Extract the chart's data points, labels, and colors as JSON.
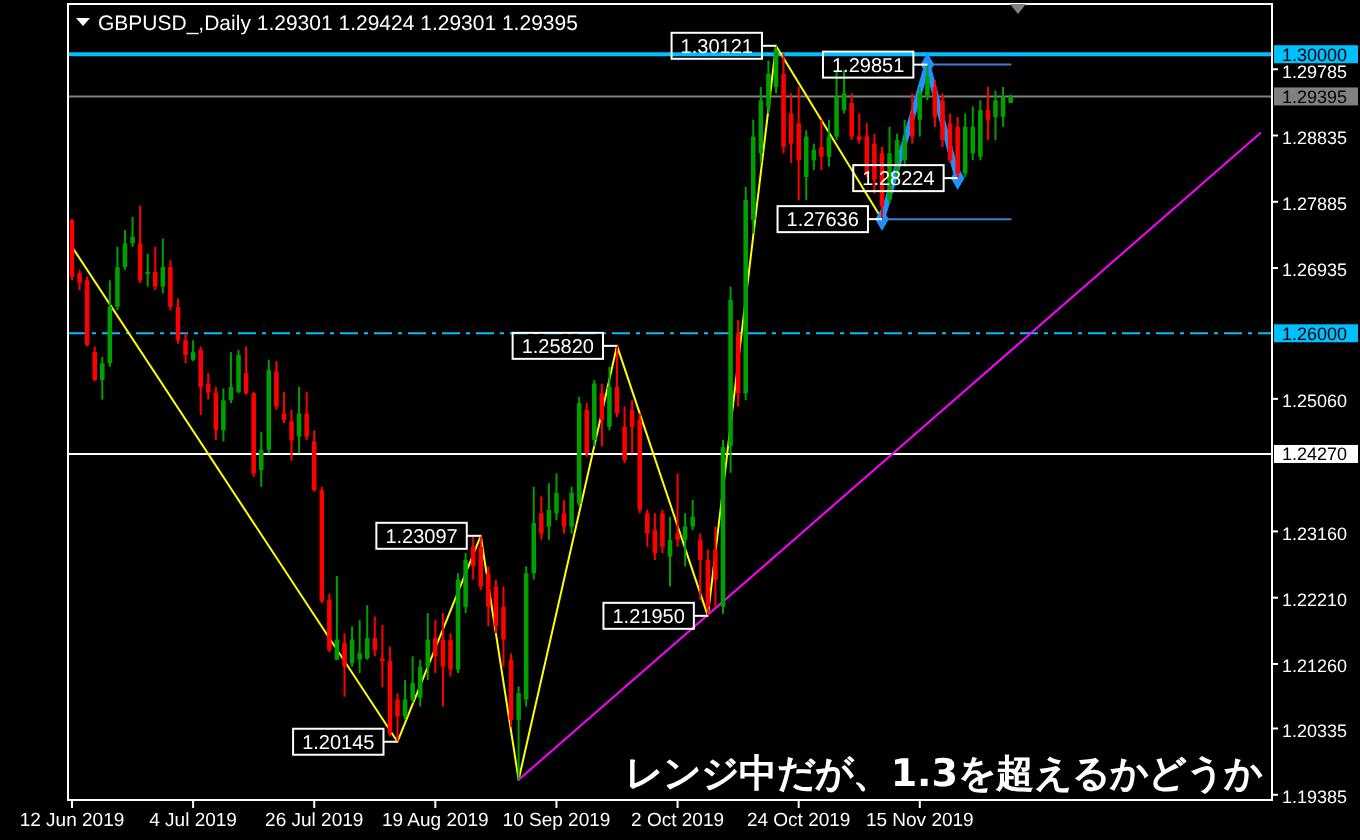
{
  "chart_data": {
    "type": "candlestick",
    "title": "GBPUSD_,Daily  1.29301 1.29424 1.29301 1.29395",
    "categories": [
      "12 Jun 2019",
      null,
      null,
      null,
      null,
      null,
      null,
      null,
      null,
      null,
      null,
      null,
      null,
      null,
      null,
      null,
      "4 Jul 2019",
      null,
      null,
      null,
      null,
      null,
      null,
      null,
      null,
      null,
      null,
      null,
      null,
      null,
      null,
      null,
      "26 Jul 2019",
      null,
      null,
      null,
      null,
      null,
      null,
      null,
      null,
      null,
      null,
      null,
      null,
      null,
      null,
      null,
      "19 Aug 2019",
      null,
      null,
      null,
      null,
      null,
      null,
      null,
      null,
      null,
      null,
      null,
      null,
      null,
      null,
      null,
      "10 Sep 2019",
      null,
      null,
      null,
      null,
      null,
      null,
      null,
      null,
      null,
      null,
      null,
      null,
      null,
      null,
      null,
      "2 Oct 2019",
      null,
      null,
      null,
      null,
      null,
      null,
      null,
      null,
      null,
      null,
      null,
      null,
      null,
      null,
      null,
      "24 Oct 2019",
      null,
      null,
      null,
      null,
      null,
      null,
      null,
      null,
      null,
      null,
      null,
      null,
      null,
      null,
      null,
      "15 Nov 2019",
      null,
      null,
      null,
      null,
      null,
      null,
      null,
      null,
      null,
      null,
      null,
      null,
      null,
      null,
      null,
      null,
      null,
      null,
      null,
      null,
      null,
      null,
      null,
      null,
      null,
      null,
      null,
      null,
      null,
      null,
      null,
      null,
      null,
      null,
      null,
      null,
      null,
      null,
      null,
      null,
      null,
      null,
      null,
      null,
      null,
      null
    ],
    "colors": [
      "#ff0000",
      "#ff0000",
      "#ff0000",
      "#ff0000",
      "#00a000",
      "#00a000",
      "#00a000",
      "#00a000",
      "#00a000",
      "#ff0000",
      "#00a000",
      "#ff0000",
      "#00a000",
      "#ff0000",
      "#ff0000",
      "#ff0000",
      "#00a000",
      "#ff0000",
      "#ff0000",
      "#ff0000",
      "#00a000",
      "#00a000",
      "#00a000",
      "#ff0000",
      "#ff0000",
      "#00a000",
      "#00a000",
      "#ff0000",
      "#ff0000",
      "#ff0000",
      "#00a000",
      "#ff0000",
      "#ff0000",
      "#ff0000",
      "#ff0000",
      "#00a000",
      "#ff0000",
      "#00a000",
      "#00a000",
      "#00a000",
      "#ff0000",
      "#ff0000",
      "#ff0000",
      "#ff0000",
      "#00a000",
      "#00a000",
      "#00a000",
      "#00a000",
      "#ff0000",
      "#ff0000",
      "#ff0000",
      "#00a000",
      "#00a000",
      "#ff0000",
      "#ff0000",
      "#ff0000",
      "#ff0000",
      "#ff0000",
      "#ff0000",
      "#00a000",
      "#00a000",
      "#00a000",
      "#ff0000",
      "#00a000",
      "#00a000",
      "#ff0000",
      "#00a000",
      "#00a000",
      "#ff0000",
      "#00a000",
      "#ff0000",
      "#00a000",
      "#ff0000",
      "#ff0000",
      "#ff0000",
      "#ff0000",
      "#ff0000",
      "#ff0000",
      "#ff0000",
      "#00a000",
      "#ff0000",
      "#00a000",
      "#00a000",
      "#ff0000",
      "#ff0000",
      "#ff0000",
      "#00a000",
      "#00a000",
      "#ff0000",
      "#00a000",
      "#00a000",
      "#00a000",
      "#00a000",
      "#00a000",
      "#ff0000",
      "#ff0000",
      "#ff0000",
      "#00a000",
      "#00a000",
      "#ff0000",
      "#00a000",
      "#00a000",
      "#00a000",
      "#ff0000",
      "#ff0000",
      "#ff0000",
      "#ff0000",
      "#ff0000",
      "#00a000",
      "#00a000",
      "#00a000",
      "#ff0000",
      "#00a000",
      "#00a000",
      "#ff0000",
      "#ff0000",
      "#ff0000",
      "#ff0000",
      "#00a000",
      "#00a000",
      "#00a000",
      "#ff0000",
      "#00a000",
      "#00a000",
      "#00a000",
      null,
      null,
      null,
      null,
      null,
      null,
      null,
      null,
      null,
      null,
      null,
      null,
      null,
      null,
      null,
      null,
      null,
      null,
      null,
      null,
      null,
      null,
      null,
      null,
      null,
      null,
      null,
      null,
      null,
      null,
      null,
      null,
      null,
      null
    ],
    "ohlc": [
      [
        1.2762,
        1.2764,
        1.2676,
        1.2681
      ],
      [
        1.2686,
        1.2691,
        1.2662,
        1.2672
      ],
      [
        1.2676,
        1.2681,
        1.2581,
        1.2583
      ],
      [
        1.2573,
        1.2581,
        1.2531,
        1.2533
      ],
      [
        1.2533,
        1.2566,
        1.2505,
        1.2557
      ],
      [
        1.2557,
        1.2676,
        1.2552,
        1.2638
      ],
      [
        1.2638,
        1.2724,
        1.2633,
        1.2695
      ],
      [
        1.2695,
        1.2748,
        1.2691,
        1.2729
      ],
      [
        1.2729,
        1.2767,
        1.2724,
        1.2738
      ],
      [
        1.2729,
        1.2783,
        1.2672,
        1.2676
      ],
      [
        1.2686,
        1.2714,
        1.2667,
        1.2688
      ],
      [
        1.2688,
        1.2724,
        1.2662,
        1.2667
      ],
      [
        1.2667,
        1.2736,
        1.2657,
        1.2695
      ],
      [
        1.2695,
        1.2705,
        1.2633,
        1.2638
      ],
      [
        1.2638,
        1.265,
        1.2585,
        1.259
      ],
      [
        1.259,
        1.26,
        1.2557,
        1.2569
      ],
      [
        1.2562,
        1.259,
        1.256,
        1.2573
      ],
      [
        1.2576,
        1.2581,
        1.2483,
        1.2523
      ],
      [
        1.2528,
        1.2543,
        1.2505,
        1.2515
      ],
      [
        1.2515,
        1.2523,
        1.2447,
        1.2461
      ],
      [
        1.2461,
        1.2521,
        1.2445,
        1.2504
      ],
      [
        1.2504,
        1.2573,
        1.25,
        1.2523
      ],
      [
        1.2516,
        1.2576,
        1.2514,
        1.2569
      ],
      [
        1.2543,
        1.2581,
        1.2512,
        1.2514
      ],
      [
        1.2514,
        1.2516,
        1.2394,
        1.2399
      ],
      [
        1.2404,
        1.2459,
        1.238,
        1.2433
      ],
      [
        1.2433,
        1.2562,
        1.2428,
        1.2547
      ],
      [
        1.2545,
        1.256,
        1.249,
        1.2495
      ],
      [
        1.2485,
        1.2516,
        1.2471,
        1.2476
      ],
      [
        1.2474,
        1.249,
        1.2417,
        1.2447
      ],
      [
        1.2452,
        1.2523,
        1.2428,
        1.2485
      ],
      [
        1.2485,
        1.2516,
        1.2447,
        1.2452
      ],
      [
        1.2445,
        1.2461,
        1.2373,
        1.2375
      ],
      [
        1.2375,
        1.238,
        1.2213,
        1.2216
      ],
      [
        1.2218,
        1.2227,
        1.2143,
        1.2146
      ],
      [
        1.2132,
        1.2252,
        1.2132,
        1.2161
      ],
      [
        1.2156,
        1.217,
        1.2079,
        1.2122
      ],
      [
        1.2127,
        1.218,
        1.2122,
        1.2161
      ],
      [
        1.2132,
        1.2189,
        1.2113,
        1.2142
      ],
      [
        1.2134,
        1.221,
        1.2132,
        1.2163
      ],
      [
        1.2163,
        1.2194,
        1.2137,
        1.2146
      ],
      [
        1.2134,
        1.2182,
        1.2093,
        1.213
      ],
      [
        1.213,
        1.2151,
        1.2022,
        1.2027
      ],
      [
        1.2075,
        1.2084,
        1.20145,
        1.2051
      ],
      [
        1.2051,
        1.2103,
        1.2046,
        1.2075
      ],
      [
        1.2075,
        1.2137,
        1.207,
        1.2099
      ],
      [
        1.2077,
        1.2132,
        1.2065,
        1.2122
      ],
      [
        1.2122,
        1.2199,
        1.2103,
        1.2161
      ],
      [
        1.2163,
        1.2189,
        1.2113,
        1.2137
      ],
      [
        1.2161,
        1.2199,
        1.2065,
        1.2122
      ],
      [
        1.216,
        1.217,
        1.2108,
        1.2118
      ],
      [
        1.2118,
        1.2256,
        1.2113,
        1.2247
      ],
      [
        1.2208,
        1.2285,
        1.2199,
        1.2275
      ],
      [
        1.2294,
        1.2309,
        1.2247,
        1.2266
      ],
      [
        1.2294,
        1.23097,
        1.2232,
        1.2237
      ],
      [
        1.2256,
        1.2266,
        1.218,
        1.2208
      ],
      [
        1.2237,
        1.2247,
        1.217,
        1.218
      ],
      [
        1.2208,
        1.2237,
        1.2122,
        1.2161
      ],
      [
        1.2132,
        1.2141,
        1.2036,
        1.2046
      ],
      [
        1.2046,
        1.2094,
        1.196,
        1.2084
      ],
      [
        1.2075,
        1.2266,
        1.2065,
        1.2256
      ],
      [
        1.2256,
        1.238,
        1.2247,
        1.2328
      ],
      [
        1.2342,
        1.2366,
        1.2304,
        1.2313
      ],
      [
        1.2323,
        1.2385,
        1.2304,
        1.2347
      ],
      [
        1.2342,
        1.2399,
        1.2332,
        1.2371
      ],
      [
        1.2342,
        1.2361,
        1.2313,
        1.2323
      ],
      [
        1.2323,
        1.238,
        1.2313,
        1.2371
      ],
      [
        1.2356,
        1.2509,
        1.2352,
        1.25
      ],
      [
        1.249,
        1.25,
        1.2423,
        1.2428
      ],
      [
        1.2447,
        1.2533,
        1.2438,
        1.2528
      ],
      [
        1.2514,
        1.2528,
        1.2438,
        1.2476
      ],
      [
        1.2466,
        1.2552,
        1.2461,
        1.2523
      ],
      [
        1.2523,
        1.2582,
        1.248,
        1.2485
      ],
      [
        1.2466,
        1.2495,
        1.2414,
        1.2418
      ],
      [
        1.249,
        1.2504,
        1.2428,
        1.2466
      ],
      [
        1.2476,
        1.2485,
        1.2342,
        1.2347
      ],
      [
        1.2342,
        1.2347,
        1.2294,
        1.2313
      ],
      [
        1.2318,
        1.2342,
        1.2275,
        1.2285
      ],
      [
        1.2342,
        1.2347,
        1.2285,
        1.2294
      ],
      [
        1.228,
        1.2337,
        1.2237,
        1.2304
      ],
      [
        1.2313,
        1.2399,
        1.2294,
        1.2304
      ],
      [
        1.2304,
        1.2342,
        1.2266,
        1.2323
      ],
      [
        1.2323,
        1.2361,
        1.2318,
        1.2337
      ],
      [
        1.2304,
        1.2313,
        1.2218,
        1.2275
      ],
      [
        1.2275,
        1.229,
        1.2195,
        1.2208
      ],
      [
        1.229,
        1.2323,
        1.2208,
        1.2247
      ],
      [
        1.2208,
        1.2447,
        1.2198,
        1.2437
      ],
      [
        1.2438,
        1.2667,
        1.24,
        1.2648
      ],
      [
        1.26,
        1.2619,
        1.2495,
        1.2514
      ],
      [
        1.2514,
        1.281,
        1.2504,
        1.2791
      ],
      [
        1.2762,
        1.2906,
        1.2743,
        1.2882
      ],
      [
        1.2858,
        1.2953,
        1.2844,
        1.2934
      ],
      [
        1.2925,
        1.2991,
        1.2915,
        1.2972
      ],
      [
        1.2953,
        1.30121,
        1.2944,
        1.3006
      ],
      [
        1.2972,
        1.3001,
        1.2858,
        1.2867
      ],
      [
        1.2915,
        1.2944,
        1.2844,
        1.2872
      ],
      [
        1.2901,
        1.2953,
        1.2791,
        1.2848
      ],
      [
        1.2824,
        1.2891,
        1.2791,
        1.2882
      ],
      [
        1.2848,
        1.2872,
        1.2834,
        1.2863
      ],
      [
        1.2867,
        1.2906,
        1.2834,
        1.2853
      ],
      [
        1.2853,
        1.2906,
        1.2839,
        1.2882
      ],
      [
        1.2882,
        1.2977,
        1.2877,
        1.2939
      ],
      [
        1.292,
        1.2977,
        1.2915,
        1.2944
      ],
      [
        1.293,
        1.2944,
        1.2877,
        1.2882
      ],
      [
        1.2882,
        1.2915,
        1.2872,
        1.2877
      ],
      [
        1.2882,
        1.2901,
        1.2824,
        1.2829
      ],
      [
        1.2872,
        1.2886,
        1.28,
        1.282
      ],
      [
        1.2858,
        1.2867,
        1.27636,
        1.2782
      ],
      [
        1.2791,
        1.2896,
        1.2786,
        1.2858
      ],
      [
        1.2829,
        1.2886,
        1.282,
        1.2877
      ],
      [
        1.2848,
        1.2906,
        1.2839,
        1.2877
      ],
      [
        1.2915,
        1.2944,
        1.2872,
        1.2882
      ],
      [
        1.2906,
        1.2953,
        1.2882,
        1.2944
      ],
      [
        1.2939,
        1.29851,
        1.2934,
        1.2968
      ],
      [
        1.2953,
        1.2963,
        1.2896,
        1.291
      ],
      [
        1.2934,
        1.2944,
        1.2867,
        1.2877
      ],
      [
        1.2901,
        1.2915,
        1.2844,
        1.2848
      ],
      [
        1.2896,
        1.291,
        1.28224,
        1.2829
      ],
      [
        1.2829,
        1.2915,
        1.2824,
        1.2896
      ],
      [
        1.2858,
        1.2925,
        1.2848,
        1.2896
      ],
      [
        1.2853,
        1.2934,
        1.2848,
        1.292
      ],
      [
        1.292,
        1.2953,
        1.2877,
        1.2906
      ],
      [
        1.291,
        1.2948,
        1.2877,
        1.2934
      ],
      [
        1.291,
        1.2953,
        1.2896,
        1.2939
      ],
      [
        1.29301,
        1.29424,
        1.29301,
        1.29395
      ],
      null,
      null,
      null,
      null,
      null,
      null,
      null,
      null,
      null,
      null,
      null,
      null,
      null,
      null,
      null,
      null,
      null,
      null,
      null,
      null,
      null,
      null,
      null,
      null,
      null,
      null,
      null,
      null,
      null,
      null,
      null,
      null,
      null,
      null
    ],
    "series": [
      {
        "type": "line",
        "color": "#ffff00",
        "values": [
          1.2724,
          null,
          null,
          null,
          null,
          null,
          null,
          null,
          null,
          null,
          null,
          null,
          null,
          null,
          null,
          null,
          null,
          null,
          null,
          null,
          null,
          null,
          null,
          null,
          null,
          null,
          null,
          null,
          null,
          null,
          null,
          null,
          null,
          null,
          null,
          null,
          null,
          null,
          null,
          null,
          null,
          null,
          null,
          1.20145,
          null,
          null,
          null,
          null,
          null,
          null,
          null,
          null,
          null,
          null,
          1.23097,
          null,
          null,
          null,
          null,
          1.196,
          null,
          null,
          null,
          null,
          null,
          null,
          null,
          null,
          null,
          null,
          null,
          null,
          1.2582,
          null,
          null,
          null,
          null,
          null,
          null,
          null,
          null,
          null,
          null,
          null,
          1.2195,
          null,
          null,
          null,
          null,
          null,
          null,
          null,
          null,
          1.30121,
          null,
          null,
          null,
          null,
          null,
          null,
          null,
          null,
          null,
          null,
          null,
          null,
          null,
          1.27636,
          null,
          null,
          null,
          null,
          null,
          null,
          null,
          null,
          null,
          null,
          null,
          null,
          null,
          null,
          null,
          null,
          null,
          null,
          null,
          null,
          null,
          null,
          null,
          null,
          null,
          null,
          null,
          null,
          null,
          null,
          null,
          null,
          null,
          null,
          null,
          null,
          null,
          null,
          null,
          null,
          null,
          null,
          null,
          null,
          null,
          null,
          null,
          null,
          null,
          null,
          null
        ],
        "value_labels": [
          null,
          null,
          null,
          null,
          null,
          null,
          null,
          null,
          null,
          null,
          null,
          null,
          null,
          null,
          null,
          null,
          null,
          null,
          null,
          null,
          null,
          null,
          null,
          null,
          null,
          null,
          null,
          null,
          null,
          null,
          null,
          null,
          null,
          null,
          null,
          null,
          null,
          null,
          null,
          null,
          null,
          null,
          null,
          "1.20145",
          null,
          null,
          null,
          null,
          null,
          null,
          null,
          null,
          null,
          null,
          "1.23097",
          null,
          null,
          null,
          null,
          null,
          null,
          null,
          null,
          null,
          null,
          null,
          null,
          null,
          null,
          null,
          null,
          null,
          "1.25820",
          null,
          null,
          null,
          null,
          null,
          null,
          null,
          null,
          null,
          null,
          null,
          "1.21950",
          null,
          null,
          null,
          null,
          null,
          null,
          null,
          null,
          "1.30121",
          null,
          null,
          null,
          null,
          null,
          null,
          null,
          null,
          null,
          null,
          null,
          null,
          null,
          "1.27636",
          null,
          null,
          null,
          null,
          null,
          null,
          null,
          null,
          null,
          null,
          null,
          null,
          null,
          null,
          null,
          null,
          null,
          null,
          null,
          null,
          null,
          null,
          null,
          null,
          null,
          null,
          null,
          null,
          null,
          null,
          null,
          null,
          null,
          null,
          null,
          null,
          null,
          null,
          null,
          null,
          null,
          null,
          null,
          null,
          null,
          null,
          null,
          null,
          null,
          null,
          null
        ]
      },
      {
        "type": "line",
        "color": "#1e90ff",
        "marker": "diamond",
        "values": [
          null,
          null,
          null,
          null,
          null,
          null,
          null,
          null,
          null,
          null,
          null,
          null,
          null,
          null,
          null,
          null,
          null,
          null,
          null,
          null,
          null,
          null,
          null,
          null,
          null,
          null,
          null,
          null,
          null,
          null,
          null,
          null,
          null,
          null,
          null,
          null,
          null,
          null,
          null,
          null,
          null,
          null,
          null,
          null,
          null,
          null,
          null,
          null,
          null,
          null,
          null,
          null,
          null,
          null,
          null,
          null,
          null,
          null,
          null,
          null,
          null,
          null,
          null,
          null,
          null,
          null,
          null,
          null,
          null,
          null,
          null,
          null,
          null,
          null,
          null,
          null,
          null,
          null,
          null,
          null,
          null,
          null,
          null,
          null,
          null,
          null,
          null,
          null,
          null,
          null,
          null,
          null,
          null,
          null,
          null,
          null,
          null,
          null,
          null,
          null,
          null,
          null,
          null,
          null,
          null,
          null,
          null,
          1.27636,
          null,
          null,
          null,
          null,
          null,
          1.29851,
          null,
          null,
          null,
          1.28224,
          null,
          null,
          null,
          null,
          null,
          null,
          null,
          null,
          null,
          null,
          null,
          null,
          null,
          null,
          null,
          null,
          null,
          null,
          null,
          null,
          null,
          null,
          null,
          null,
          null,
          null,
          null,
          null,
          null,
          null,
          null,
          null,
          null,
          null,
          null,
          null,
          null,
          null,
          null,
          null,
          null
        ],
        "value_labels": [
          null,
          null,
          null,
          null,
          null,
          null,
          null,
          null,
          null,
          null,
          null,
          null,
          null,
          null,
          null,
          null,
          null,
          null,
          null,
          null,
          null,
          null,
          null,
          null,
          null,
          null,
          null,
          null,
          null,
          null,
          null,
          null,
          null,
          null,
          null,
          null,
          null,
          null,
          null,
          null,
          null,
          null,
          null,
          null,
          null,
          null,
          null,
          null,
          null,
          null,
          null,
          null,
          null,
          null,
          null,
          null,
          null,
          null,
          null,
          null,
          null,
          null,
          null,
          null,
          null,
          null,
          null,
          null,
          null,
          null,
          null,
          null,
          null,
          null,
          null,
          null,
          null,
          null,
          null,
          null,
          null,
          null,
          null,
          null,
          null,
          null,
          null,
          null,
          null,
          null,
          null,
          null,
          null,
          null,
          null,
          null,
          null,
          null,
          null,
          null,
          null,
          null,
          null,
          null,
          null,
          null,
          null,
          null,
          null,
          null,
          null,
          null,
          null,
          "1.29851",
          null,
          null,
          null,
          "1.28224",
          null,
          null,
          null,
          null,
          null,
          null,
          null,
          null,
          null,
          null,
          null,
          null,
          null,
          null,
          null,
          null,
          null,
          null,
          null,
          null,
          null,
          null,
          null,
          null,
          null,
          null,
          null,
          null,
          null,
          null,
          null,
          null,
          null,
          null,
          null,
          null,
          null,
          null,
          null,
          null,
          null
        ]
      },
      {
        "type": "line",
        "color": "#3a7fd0",
        "values": [
          null,
          null,
          null,
          null,
          null,
          null,
          null,
          null,
          null,
          null,
          null,
          null,
          null,
          null,
          null,
          null,
          null,
          null,
          null,
          null,
          null,
          null,
          null,
          null,
          null,
          null,
          null,
          null,
          null,
          null,
          null,
          null,
          null,
          null,
          null,
          null,
          null,
          null,
          null,
          null,
          null,
          null,
          null,
          null,
          null,
          null,
          null,
          null,
          null,
          null,
          null,
          null,
          null,
          null,
          null,
          null,
          null,
          null,
          null,
          null,
          null,
          null,
          null,
          null,
          null,
          null,
          null,
          null,
          null,
          null,
          null,
          null,
          null,
          null,
          null,
          null,
          null,
          null,
          null,
          null,
          null,
          null,
          null,
          null,
          null,
          null,
          null,
          null,
          null,
          null,
          null,
          null,
          null,
          null,
          null,
          null,
          null,
          null,
          null,
          null,
          null,
          null,
          null,
          null,
          null,
          null,
          null,
          null,
          null,
          null,
          null,
          null,
          null,
          1.29851,
          null,
          null,
          null,
          null,
          null,
          null,
          null,
          null,
          null,
          null,
          1.29851,
          null,
          null,
          null,
          null,
          null,
          null,
          null,
          null,
          null,
          null,
          null,
          null,
          null,
          null,
          null,
          null,
          null,
          null,
          null,
          null,
          null,
          null,
          null,
          null,
          null,
          null,
          null,
          null,
          null,
          null,
          null,
          null,
          null,
          null
        ]
      },
      {
        "type": "line",
        "color": "#3a7fd0",
        "values": [
          null,
          null,
          null,
          null,
          null,
          null,
          null,
          null,
          null,
          null,
          null,
          null,
          null,
          null,
          null,
          null,
          null,
          null,
          null,
          null,
          null,
          null,
          null,
          null,
          null,
          null,
          null,
          null,
          null,
          null,
          null,
          null,
          null,
          null,
          null,
          null,
          null,
          null,
          null,
          null,
          null,
          null,
          null,
          null,
          null,
          null,
          null,
          null,
          null,
          null,
          null,
          null,
          null,
          null,
          null,
          null,
          null,
          null,
          null,
          null,
          null,
          null,
          null,
          null,
          null,
          null,
          null,
          null,
          null,
          null,
          null,
          null,
          null,
          null,
          null,
          null,
          null,
          null,
          null,
          null,
          null,
          null,
          null,
          null,
          null,
          null,
          null,
          null,
          null,
          null,
          null,
          null,
          null,
          null,
          null,
          null,
          null,
          null,
          null,
          null,
          null,
          null,
          null,
          null,
          null,
          null,
          null,
          1.27636,
          null,
          null,
          null,
          null,
          null,
          null,
          null,
          null,
          null,
          null,
          null,
          null,
          null,
          null,
          null,
          null,
          1.27636,
          null,
          null,
          null,
          null,
          null,
          null,
          null,
          null,
          null,
          null,
          null,
          null,
          null,
          null,
          null,
          null,
          null,
          null,
          null,
          null,
          null,
          null,
          null,
          null,
          null,
          null,
          null,
          null,
          null,
          null,
          null,
          null,
          null,
          null
        ]
      },
      {
        "type": "line",
        "color": "#ff00ff",
        "values": [
          null,
          null,
          null,
          null,
          null,
          null,
          null,
          null,
          null,
          null,
          null,
          null,
          null,
          null,
          null,
          null,
          null,
          null,
          null,
          null,
          null,
          null,
          null,
          null,
          null,
          null,
          null,
          null,
          null,
          null,
          null,
          null,
          null,
          null,
          null,
          null,
          null,
          null,
          null,
          null,
          null,
          null,
          null,
          null,
          null,
          null,
          null,
          null,
          null,
          null,
          null,
          null,
          null,
          null,
          null,
          null,
          null,
          null,
          null,
          1.196,
          null,
          null,
          null,
          null,
          null,
          null,
          null,
          null,
          null,
          null,
          null,
          null,
          null,
          null,
          null,
          null,
          null,
          null,
          null,
          null,
          null,
          null,
          null,
          null,
          null,
          null,
          null,
          null,
          null,
          null,
          null,
          null,
          null,
          null,
          null,
          null,
          null,
          null,
          null,
          null,
          null,
          null,
          null,
          null,
          null,
          null,
          null,
          null,
          null,
          null,
          null,
          null,
          null,
          null,
          null,
          null,
          null,
          null,
          null,
          null,
          null,
          null,
          null,
          null,
          null,
          null,
          null,
          null,
          null,
          null,
          null,
          null,
          null,
          null,
          null,
          null,
          null,
          null,
          null,
          null,
          null,
          null,
          null,
          null,
          null,
          null,
          null,
          null,
          null,
          null,
          null,
          null,
          null,
          null,
          null,
          null,
          null,
          1.2887,
          null
        ]
      }
    ],
    "ylim": [
      1.1931,
      1.3072
    ],
    "yticks": [
      {
        "value": 1.29785,
        "label": "1.29785"
      },
      {
        "value": 1.28835,
        "label": "1.28835"
      },
      {
        "value": 1.27885,
        "label": "1.27885"
      },
      {
        "value": 1.26935,
        "label": "1.26935"
      },
      {
        "value": 1.2506,
        "label": "1.25060"
      },
      {
        "value": 1.2316,
        "label": "1.23160"
      },
      {
        "value": 1.2221,
        "label": "1.22210"
      },
      {
        "value": 1.2126,
        "label": "1.21260"
      },
      {
        "value": 1.20335,
        "label": "1.20335"
      },
      {
        "value": 1.19385,
        "label": "1.19385"
      }
    ],
    "ref_lines": [
      {
        "axis": "y",
        "value": 1.3,
        "label": "1.30000",
        "color": "#00bfff",
        "line_style": "solid"
      },
      {
        "axis": "y",
        "value": 1.29395,
        "label": "1.29395",
        "color": "#808080",
        "line_style": "solid"
      },
      {
        "axis": "y",
        "value": 1.26,
        "label": "1.26000",
        "color": "#00bfff",
        "line_style": "dashed"
      },
      {
        "axis": "y",
        "value": 1.2427,
        "label": "1.24270",
        "color": "#ffffff",
        "line_style": "solid"
      }
    ],
    "annotations": [
      "レンジ中だが、1.3を超えるかどうか"
    ]
  }
}
